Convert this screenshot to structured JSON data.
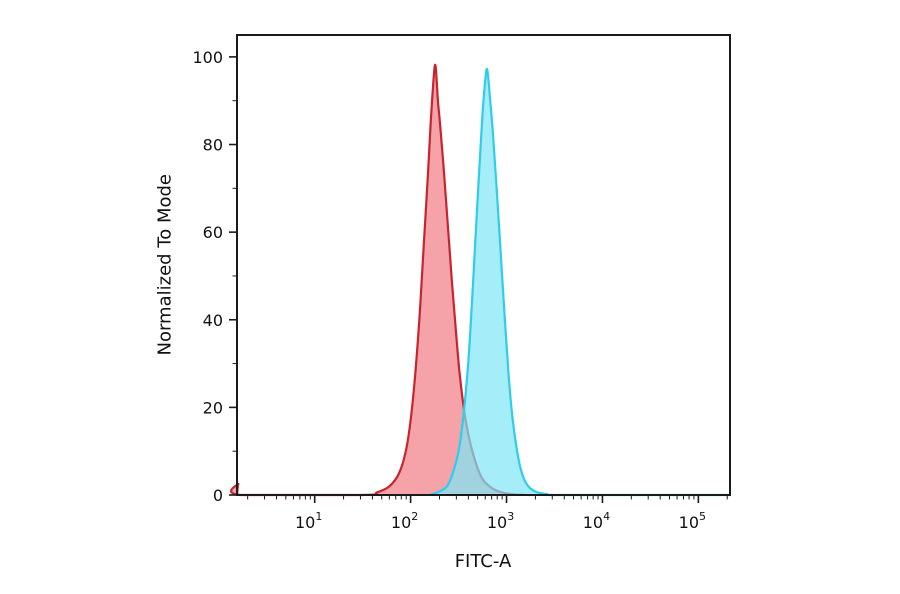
{
  "figure": {
    "title": "",
    "xlabel": "FITC-A",
    "ylabel": "Normalized To Mode"
  },
  "chart_data": {
    "type": "area",
    "subtype": "flow-cytometry-histogram-overlay",
    "title": "",
    "xlabel": "FITC-A",
    "ylabel": "Normalized To Mode",
    "x_scale": "log10",
    "xlim_log10": [
      0.19,
      5.33
    ],
    "ylim": [
      0,
      105
    ],
    "x_tick_exponents": [
      1,
      2,
      3,
      4,
      5
    ],
    "x_tick_base": "10",
    "y_ticks": [
      0,
      20,
      40,
      60,
      80,
      100
    ],
    "y_minor_ticks": [
      10,
      30,
      50,
      70,
      90
    ],
    "grid": false,
    "legend": null,
    "frame_color": "#1a1a1a",
    "series": [
      {
        "name": "red-control-histogram",
        "stroke": "#c8242f",
        "fill": "rgba(239,106,114,0.62)",
        "stroke_width": 2.2,
        "points_log10x_y": [
          [
            0.19,
            0
          ],
          [
            0.205,
            2.5
          ],
          [
            0.23,
            0
          ],
          [
            1.5,
            0
          ],
          [
            1.65,
            0.6
          ],
          [
            1.78,
            2
          ],
          [
            1.88,
            5
          ],
          [
            1.95,
            10
          ],
          [
            2.0,
            17
          ],
          [
            2.05,
            28
          ],
          [
            2.1,
            43
          ],
          [
            2.14,
            58
          ],
          [
            2.18,
            73
          ],
          [
            2.21,
            85
          ],
          [
            2.24,
            95
          ],
          [
            2.26,
            98
          ],
          [
            2.285,
            90
          ],
          [
            2.31,
            84
          ],
          [
            2.35,
            73
          ],
          [
            2.39,
            61
          ],
          [
            2.43,
            49
          ],
          [
            2.47,
            38
          ],
          [
            2.51,
            28
          ],
          [
            2.56,
            19
          ],
          [
            2.61,
            13
          ],
          [
            2.67,
            8
          ],
          [
            2.74,
            4
          ],
          [
            2.82,
            2
          ],
          [
            2.92,
            0.8
          ],
          [
            3.05,
            0.2
          ],
          [
            3.2,
            0
          ]
        ]
      },
      {
        "name": "cyan-stained-histogram",
        "stroke": "#2fcdea",
        "fill": "rgba(126,230,247,0.70)",
        "stroke_width": 2.2,
        "points_log10x_y": [
          [
            2.2,
            0
          ],
          [
            2.3,
            0.8
          ],
          [
            2.38,
            2
          ],
          [
            2.44,
            5
          ],
          [
            2.5,
            10
          ],
          [
            2.55,
            18
          ],
          [
            2.6,
            30
          ],
          [
            2.64,
            44
          ],
          [
            2.68,
            60
          ],
          [
            2.72,
            76
          ],
          [
            2.75,
            87
          ],
          [
            2.78,
            95
          ],
          [
            2.8,
            97
          ],
          [
            2.83,
            90
          ],
          [
            2.86,
            82
          ],
          [
            2.9,
            69
          ],
          [
            2.94,
            55
          ],
          [
            2.98,
            41
          ],
          [
            3.02,
            28
          ],
          [
            3.06,
            18
          ],
          [
            3.11,
            10
          ],
          [
            3.16,
            5
          ],
          [
            3.22,
            2.2
          ],
          [
            3.3,
            0.8
          ],
          [
            3.42,
            0.2
          ],
          [
            3.6,
            0
          ],
          [
            5.33,
            0
          ]
        ]
      }
    ]
  }
}
